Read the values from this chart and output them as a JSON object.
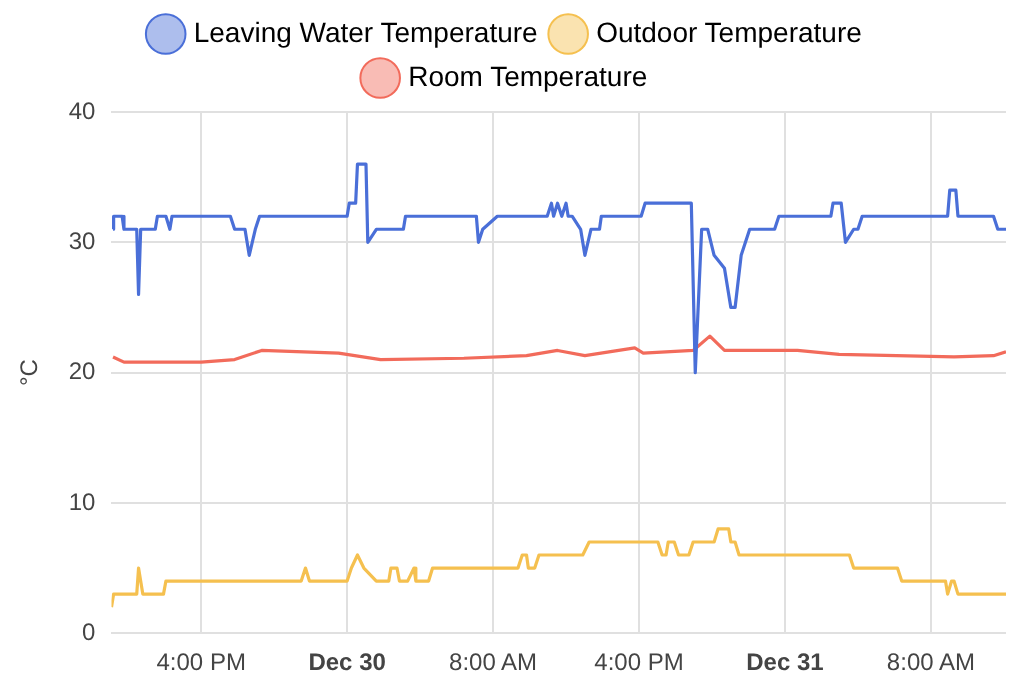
{
  "chart_data": {
    "type": "line",
    "ylabel": "°C",
    "legend": "top",
    "grid": true,
    "marker": "none",
    "xlim": [
      "--12-29T11:05",
      "--12-31T12:07"
    ],
    "xticks": [
      {
        "value": "--12-29T16:00",
        "label": "4:00 PM"
      },
      {
        "value": "--12-30T00:00",
        "label": "Dec 30"
      },
      {
        "value": "--12-30T08:00",
        "label": "8:00 AM"
      },
      {
        "value": "--12-30T16:00",
        "label": "4:00 PM"
      },
      {
        "value": "--12-31T00:00",
        "label": "Dec 31"
      },
      {
        "value": "--12-31T08:00",
        "label": "8:00 AM"
      }
    ],
    "ylim": [
      0,
      40
    ],
    "yticks": [
      0,
      10,
      20,
      30,
      40
    ],
    "series": [
      {
        "name": "Leaving Water Temperature",
        "color": "#4a6fd8",
        "x": [
          "--12-29T11:10",
          "--12-29T11:12",
          "--12-29T11:40",
          "--12-29T11:46",
          "--12-29T12:28",
          "--12-29T12:34",
          "--12-29T12:41",
          "--12-29T13:29",
          "--12-29T13:36",
          "--12-29T14:04",
          "--12-29T14:17",
          "--12-29T14:24",
          "--12-29T17:36",
          "--12-29T17:50",
          "--12-29T18:24",
          "--12-29T18:38",
          "--12-29T18:58",
          "--12-29T19:12",
          "--12-30T00:00",
          "--12-30T00:07",
          "--12-30T00:28",
          "--12-30T00:34",
          "--12-30T01:02",
          "--12-30T01:08",
          "--12-30T01:36",
          "--12-30T03:05",
          "--12-30T03:12",
          "--12-30T07:05",
          "--12-30T07:12",
          "--12-30T07:26",
          "--12-30T08:14",
          "--12-30T10:58",
          "--12-30T11:12",
          "--12-30T11:19",
          "--12-30T11:32",
          "--12-30T11:46",
          "--12-30T12:00",
          "--12-30T12:07",
          "--12-30T12:20",
          "--12-30T12:48",
          "--12-30T13:02",
          "--12-30T13:22",
          "--12-30T13:50",
          "--12-30T13:56",
          "--12-30T16:07",
          "--12-30T16:20",
          "--12-30T18:52",
          "--12-30T19:05",
          "--12-30T19:26",
          "--12-30T19:46",
          "--12-30T20:07",
          "--12-30T20:41",
          "--12-30T21:02",
          "--12-30T21:16",
          "--12-30T21:36",
          "--12-30T22:04",
          "--12-30T23:26",
          "--12-30T23:40",
          "--12-31T02:31",
          "--12-31T02:38",
          "--12-31T03:05",
          "--12-31T03:19",
          "--12-31T03:46",
          "--12-31T04:00",
          "--12-31T04:14",
          "--12-31T08:55",
          "--12-31T09:02",
          "--12-31T09:22",
          "--12-31T09:29",
          "--12-31T11:26",
          "--12-31T11:40",
          "--12-31T12:07"
        ],
        "values": [
          31,
          32,
          32,
          31,
          31,
          26,
          31,
          31,
          32,
          32,
          31,
          32,
          32,
          31,
          31,
          29,
          31,
          32,
          32,
          33,
          33,
          36,
          36,
          30,
          31,
          31,
          32,
          32,
          30,
          31,
          32,
          32,
          33,
          32,
          33,
          32,
          33,
          32,
          32,
          31,
          29,
          31,
          31,
          32,
          32,
          33,
          33,
          20,
          31,
          31,
          29,
          28,
          25,
          25,
          29,
          31,
          31,
          32,
          32,
          33,
          33,
          30,
          31,
          31,
          32,
          32,
          34,
          34,
          32,
          32,
          31,
          31
        ]
      },
      {
        "name": "Outdoor Temperature",
        "color": "#f5c04f",
        "x": [
          "--12-29T11:05",
          "--12-29T11:12",
          "--12-29T12:28",
          "--12-29T12:34",
          "--12-29T12:48",
          "--12-29T13:56",
          "--12-29T14:04",
          "--12-29T21:29",
          "--12-29T21:43",
          "--12-29T21:56",
          "--12-30T00:00",
          "--12-30T00:14",
          "--12-30T00:34",
          "--12-30T00:55",
          "--12-30T01:36",
          "--12-30T02:17",
          "--12-30T02:24",
          "--12-30T02:44",
          "--12-30T02:52",
          "--12-30T03:19",
          "--12-30T03:40",
          "--12-30T03:46",
          "--12-30T04:28",
          "--12-30T04:41",
          "--12-30T09:22",
          "--12-30T09:36",
          "--12-30T09:50",
          "--12-30T09:56",
          "--12-30T10:17",
          "--12-30T10:31",
          "--12-30T12:55",
          "--12-30T13:16",
          "--12-30T13:29",
          "--12-30T17:02",
          "--12-30T17:16",
          "--12-30T17:29",
          "--12-30T17:36",
          "--12-30T17:56",
          "--12-30T18:10",
          "--12-30T18:44",
          "--12-30T18:58",
          "--12-30T20:07",
          "--12-30T20:20",
          "--12-30T20:55",
          "--12-30T21:02",
          "--12-30T21:16",
          "--12-30T21:29",
          "--12-31T03:32",
          "--12-31T03:46",
          "--12-31T06:10",
          "--12-31T06:24",
          "--12-31T08:48",
          "--12-31T08:55",
          "--12-31T09:08",
          "--12-31T09:16",
          "--12-31T09:29",
          "--12-31T12:07"
        ],
        "values": [
          2,
          3,
          3,
          5,
          3,
          3,
          4,
          4,
          5,
          4,
          4,
          5,
          6,
          5,
          4,
          4,
          5,
          5,
          4,
          4,
          5,
          4,
          4,
          5,
          5,
          6,
          6,
          5,
          5,
          6,
          6,
          7,
          7,
          7,
          6,
          6,
          7,
          7,
          6,
          6,
          7,
          7,
          8,
          8,
          7,
          7,
          6,
          6,
          5,
          5,
          4,
          4,
          3,
          4,
          4,
          3,
          3
        ]
      },
      {
        "name": "Room Temperature",
        "color": "#f26b5b",
        "x": [
          "--12-29T11:10",
          "--12-29T11:46",
          "--12-29T16:00",
          "--12-29T17:50",
          "--12-29T19:19",
          "--12-29T23:32",
          "--12-30T01:50",
          "--12-30T06:24",
          "--12-30T09:50",
          "--12-30T11:32",
          "--12-30T13:02",
          "--12-30T15:46",
          "--12-30T16:14",
          "--12-30T18:58",
          "--12-30T19:53",
          "--12-30T20:41",
          "--12-31T00:41",
          "--12-31T02:58",
          "--12-31T09:16",
          "--12-31T11:26",
          "--12-31T12:07"
        ],
        "values": [
          21.2,
          20.8,
          20.8,
          21.0,
          21.7,
          21.5,
          21.0,
          21.1,
          21.3,
          21.7,
          21.3,
          21.9,
          21.5,
          21.7,
          22.8,
          21.7,
          21.7,
          21.4,
          21.2,
          21.3,
          21.6
        ]
      }
    ]
  }
}
